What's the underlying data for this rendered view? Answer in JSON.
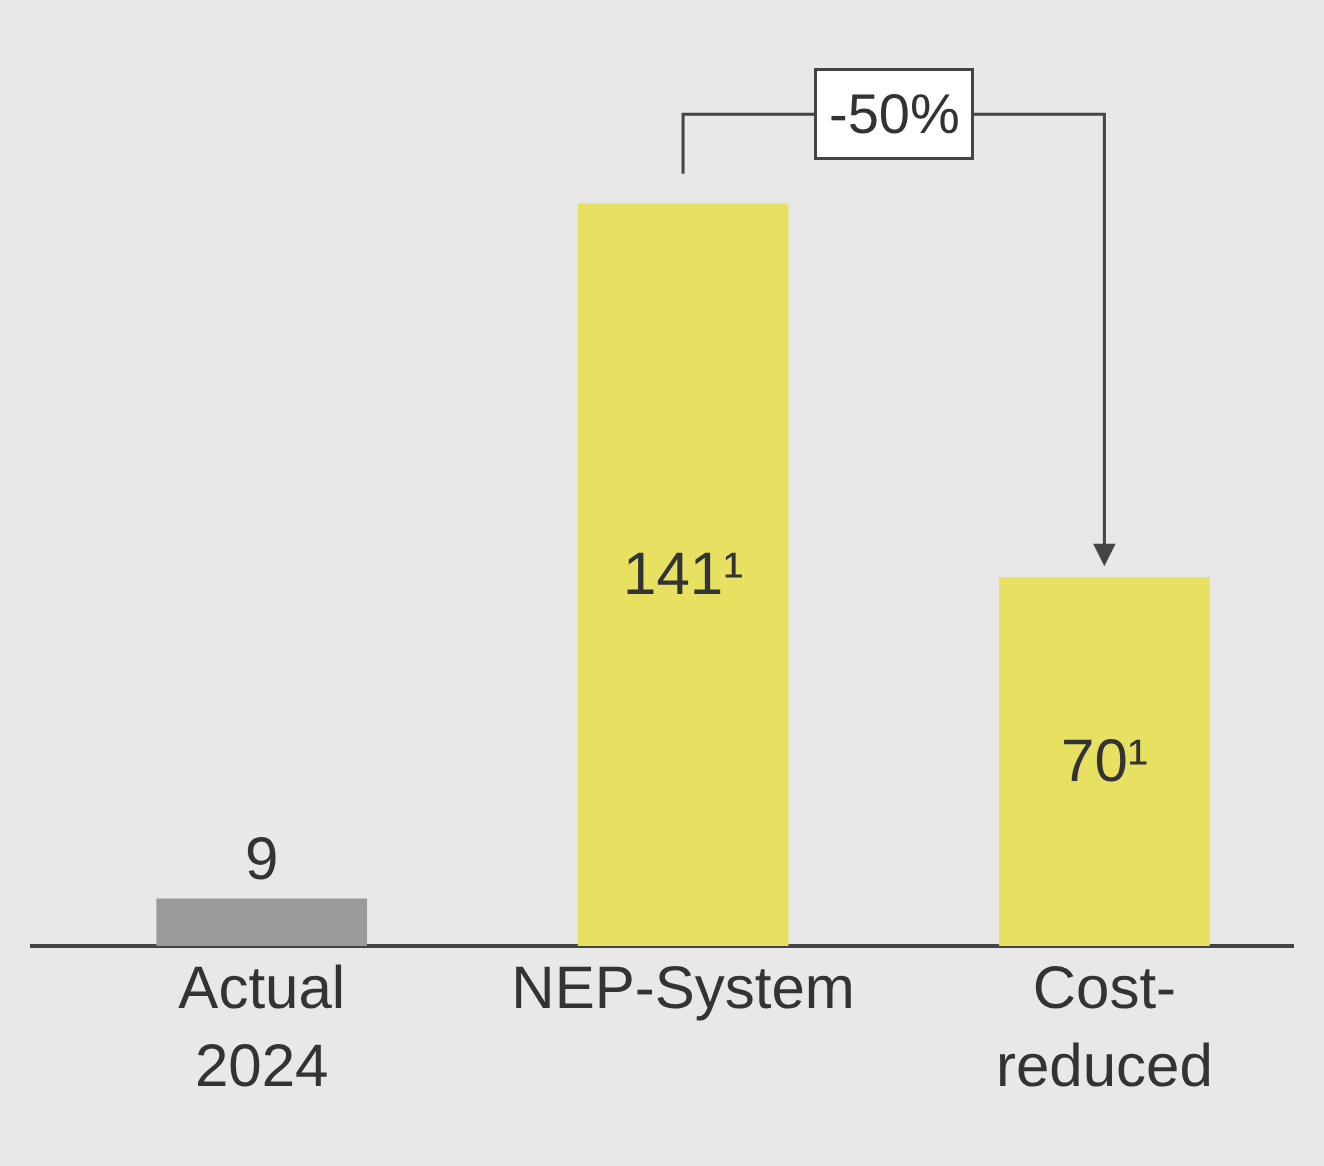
{
  "chart_data": {
    "type": "bar",
    "categories": [
      "Actual\n2024",
      "NEP-System",
      "Cost-\nreduced"
    ],
    "values": [
      9,
      141,
      70
    ],
    "colors": [
      "#9a9a9a",
      "#e8e060",
      "#e8e060"
    ],
    "value_labels": [
      "9",
      "141¹",
      "70¹"
    ],
    "annotations": [
      "-50%"
    ],
    "tick_labels": "x",
    "grid": false,
    "legend": false
  }
}
